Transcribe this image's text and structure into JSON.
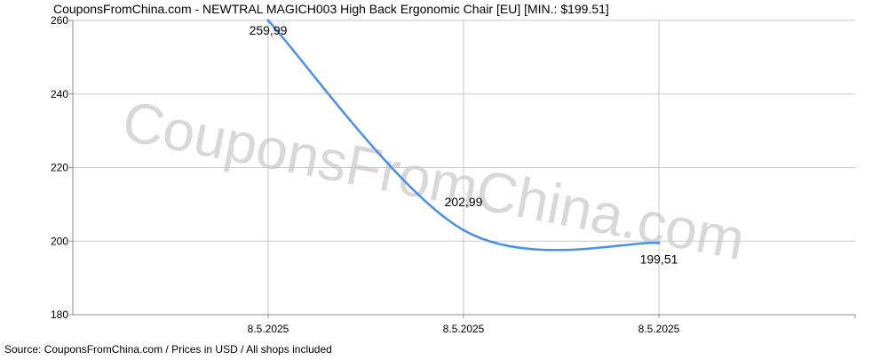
{
  "chart_data": {
    "type": "line",
    "title": "CouponsFromChina.com - NEWTRAL  MAGICH003 High Back Ergonomic Chair [EU] [MIN.: $199.51]",
    "x_tick_labels": [
      "8.5.2025",
      "8.5.2025",
      "8.5.2025"
    ],
    "series": [
      {
        "values": [
          259.99,
          202.99,
          199.51
        ],
        "color": "#4a8fe8"
      }
    ],
    "data_labels": [
      "259,99",
      "202,99",
      "199,51"
    ],
    "ylim": [
      180,
      260
    ],
    "y_ticks": [
      180,
      200,
      220,
      240,
      260
    ],
    "grid": true,
    "watermark": "CouponsFromChina.com",
    "footer": "Source:  CouponsFromChina.com / Prices in USD / All shops included"
  }
}
